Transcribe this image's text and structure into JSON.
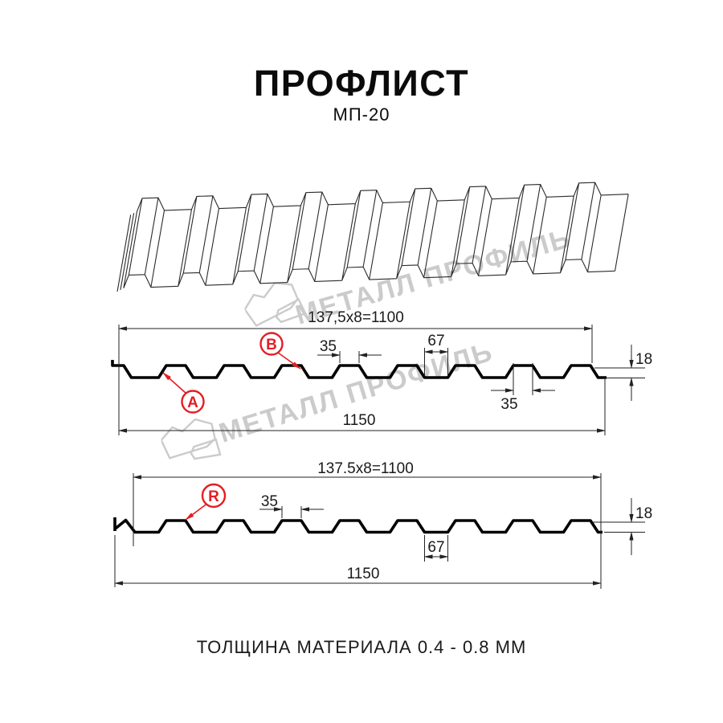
{
  "title": {
    "main": "ПРОФЛИСТ",
    "model": "МП-20"
  },
  "footer": {
    "text": "ТОЛЩИНА МАТЕРИАЛА 0.4 - 0.8 ММ"
  },
  "watermark": {
    "brand": "МЕТАЛЛ ПРОФИЛЬ"
  },
  "colors": {
    "accent_red": "#e31e24",
    "line": "#1a1a1a",
    "watermark_gray": "#c9c9c9"
  },
  "diagram1": {
    "dim_width_top": "137,5x8=1100",
    "dim_crest_width": "35",
    "dim_valley_width": "67",
    "dim_rib_width_bottom": "35",
    "dim_height": "18",
    "dim_width_total": "1150",
    "label_a": "A",
    "label_b": "B"
  },
  "diagram2": {
    "dim_width_top": "137.5x8=1100",
    "dim_crest_width": "35",
    "dim_valley_width": "67",
    "dim_height": "18",
    "dim_width_total": "1150",
    "label_r": "R"
  }
}
